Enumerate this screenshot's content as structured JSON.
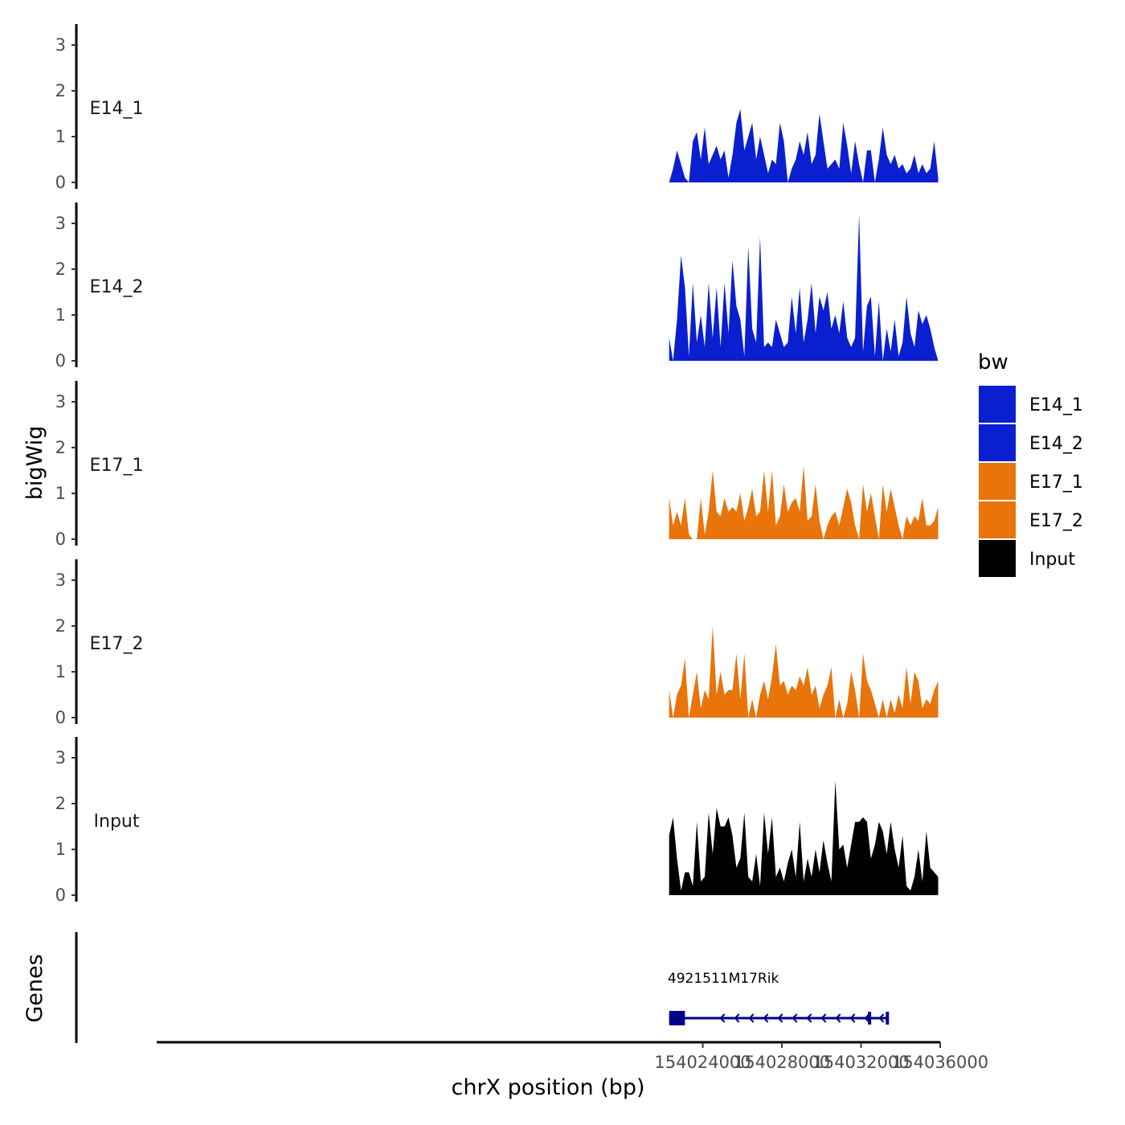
{
  "chart_data": {
    "type": "area",
    "title": "",
    "ylabel": "bigWig",
    "xlabel": "chrX position (bp)",
    "genes_label": "Genes",
    "xlim": [
      153996400,
      154036000
    ],
    "ylim": [
      0,
      3.4
    ],
    "y_ticks": [
      0,
      1,
      2,
      3
    ],
    "x_ticks": [
      154024000,
      154028000,
      154032000,
      154036000
    ],
    "x_tick_labels": [
      "154024000",
      "154028000",
      "154032000",
      "154036000"
    ],
    "legend": {
      "title": "bw",
      "position": "right",
      "entries": [
        {
          "name": "E14_1",
          "color": "#0A1FCF"
        },
        {
          "name": "E14_2",
          "color": "#0A1FCF"
        },
        {
          "name": "E17_1",
          "color": "#E8740A"
        },
        {
          "name": "E17_2",
          "color": "#E8740A"
        },
        {
          "name": "Input",
          "color": "#000000"
        }
      ]
    },
    "series": [
      {
        "name": "E14_1",
        "color": "#0A1FCF",
        "x": [
          154022300,
          154022500,
          154022700,
          154022900,
          154023100,
          154023300,
          154023500,
          154023700,
          154023900,
          154024100,
          154024300,
          154024500,
          154024700,
          154024900,
          154025100,
          154025300,
          154025500,
          154025700,
          154025900,
          154026100,
          154026300,
          154026500,
          154026700,
          154026900,
          154027100,
          154027300,
          154027500,
          154027700,
          154027900,
          154028100,
          154028300,
          154028500,
          154028700,
          154028900,
          154029100,
          154029300,
          154029500,
          154029700,
          154029900,
          154030100,
          154030300,
          154030500,
          154030700,
          154030900,
          154031100,
          154031300,
          154031500,
          154031700,
          154031900,
          154032100,
          154032300,
          154032500,
          154032700,
          154032900,
          154033100,
          154033300,
          154033500,
          154033700,
          154033900,
          154034100,
          154034300,
          154034500,
          154034700,
          154034900,
          154035100,
          154035300,
          154035500,
          154035700,
          154035900
        ],
        "values": [
          0.0,
          0.3,
          0.7,
          0.4,
          0.1,
          0.0,
          0.9,
          1.1,
          0.5,
          1.2,
          0.4,
          0.6,
          0.8,
          0.5,
          0.7,
          0.1,
          0.6,
          1.3,
          1.6,
          0.7,
          1.0,
          1.3,
          0.5,
          1.0,
          0.6,
          0.2,
          0.5,
          0.4,
          1.3,
          0.9,
          0.0,
          0.3,
          0.5,
          0.9,
          0.6,
          1.1,
          0.4,
          0.6,
          1.5,
          0.9,
          0.3,
          0.4,
          0.5,
          0.3,
          1.3,
          0.8,
          0.2,
          0.9,
          0.4,
          0.0,
          0.7,
          0.7,
          0.0,
          0.5,
          1.2,
          0.6,
          0.4,
          0.6,
          0.3,
          0.4,
          0.2,
          0.3,
          0.6,
          0.2,
          0.4,
          0.2,
          0.3,
          0.9,
          0.1
        ]
      },
      {
        "name": "E14_2",
        "color": "#0A1FCF",
        "x": [
          154022300,
          154022500,
          154022700,
          154022900,
          154023100,
          154023300,
          154023500,
          154023700,
          154023900,
          154024100,
          154024300,
          154024500,
          154024700,
          154024900,
          154025100,
          154025300,
          154025500,
          154025700,
          154025900,
          154026100,
          154026300,
          154026500,
          154026700,
          154026900,
          154027100,
          154027300,
          154027500,
          154027700,
          154027900,
          154028100,
          154028300,
          154028500,
          154028700,
          154028900,
          154029100,
          154029300,
          154029500,
          154029700,
          154029900,
          154030100,
          154030300,
          154030500,
          154030700,
          154030900,
          154031100,
          154031300,
          154031500,
          154031700,
          154031900,
          154032100,
          154032300,
          154032500,
          154032700,
          154032900,
          154033100,
          154033300,
          154033500,
          154033700,
          154033900,
          154034100,
          154034300,
          154034500,
          154034700,
          154034900,
          154035100,
          154035300,
          154035500,
          154035700,
          154035900
        ],
        "values": [
          0.5,
          0.0,
          0.9,
          2.3,
          1.6,
          0.1,
          1.7,
          0.4,
          1.0,
          0.3,
          1.7,
          0.5,
          1.6,
          0.3,
          1.7,
          0.6,
          2.2,
          1.2,
          0.9,
          0.1,
          2.5,
          0.7,
          0.4,
          2.7,
          0.3,
          0.4,
          0.3,
          0.9,
          0.6,
          0.3,
          0.4,
          1.4,
          0.6,
          1.6,
          0.4,
          0.9,
          1.7,
          0.6,
          1.4,
          1.1,
          1.5,
          0.7,
          1.0,
          0.6,
          1.3,
          0.5,
          0.3,
          0.5,
          3.2,
          0.2,
          1.2,
          1.4,
          0.1,
          1.3,
          0.0,
          0.7,
          0.2,
          0.9,
          0.1,
          0.4,
          1.4,
          0.6,
          0.3,
          1.1,
          0.8,
          1.0,
          0.7,
          0.3,
          0.0
        ]
      },
      {
        "name": "E17_1",
        "color": "#E8740A",
        "x": [
          154022300,
          154022500,
          154022700,
          154022900,
          154023100,
          154023300,
          154023500,
          154023700,
          154023900,
          154024100,
          154024300,
          154024500,
          154024700,
          154024900,
          154025100,
          154025300,
          154025500,
          154025700,
          154025900,
          154026100,
          154026300,
          154026500,
          154026700,
          154026900,
          154027100,
          154027300,
          154027500,
          154027700,
          154027900,
          154028100,
          154028300,
          154028500,
          154028700,
          154028900,
          154029100,
          154029300,
          154029500,
          154029700,
          154029900,
          154030100,
          154030300,
          154030500,
          154030700,
          154030900,
          154031100,
          154031300,
          154031500,
          154031700,
          154031900,
          154032100,
          154032300,
          154032500,
          154032700,
          154032900,
          154033100,
          154033300,
          154033500,
          154033700,
          154033900,
          154034100,
          154034300,
          154034500,
          154034700,
          154034900,
          154035100,
          154035300,
          154035500,
          154035700,
          154035900
        ],
        "values": [
          0.9,
          0.3,
          0.6,
          0.3,
          0.9,
          0.1,
          0.0,
          0.0,
          0.9,
          0.1,
          0.6,
          1.5,
          0.6,
          0.5,
          0.9,
          0.6,
          0.7,
          0.6,
          1.0,
          0.4,
          0.7,
          1.1,
          0.5,
          0.6,
          1.5,
          0.6,
          1.5,
          0.3,
          0.5,
          1.2,
          0.6,
          0.8,
          0.9,
          0.6,
          1.6,
          0.4,
          0.5,
          1.2,
          0.4,
          0.0,
          0.3,
          0.5,
          0.6,
          0.3,
          0.7,
          1.1,
          0.8,
          0.3,
          0.0,
          1.2,
          0.6,
          1.0,
          0.5,
          0.0,
          1.2,
          0.6,
          1.1,
          0.7,
          0.3,
          0.0,
          0.5,
          0.3,
          0.5,
          0.4,
          0.9,
          0.3,
          0.3,
          0.4,
          0.7
        ]
      },
      {
        "name": "E17_2",
        "color": "#E8740A",
        "x": [
          154022300,
          154022500,
          154022700,
          154022900,
          154023100,
          154023300,
          154023500,
          154023700,
          154023900,
          154024100,
          154024300,
          154024500,
          154024700,
          154024900,
          154025100,
          154025300,
          154025500,
          154025700,
          154025900,
          154026100,
          154026300,
          154026500,
          154026700,
          154026900,
          154027100,
          154027300,
          154027500,
          154027700,
          154027900,
          154028100,
          154028300,
          154028500,
          154028700,
          154028900,
          154029100,
          154029300,
          154029500,
          154029700,
          154029900,
          154030100,
          154030300,
          154030500,
          154030700,
          154030900,
          154031100,
          154031300,
          154031500,
          154031700,
          154031900,
          154032100,
          154032300,
          154032500,
          154032700,
          154032900,
          154033100,
          154033300,
          154033500,
          154033700,
          154033900,
          154034100,
          154034300,
          154034500,
          154034700,
          154034900,
          154035100,
          154035300,
          154035500,
          154035700,
          154035900
        ],
        "values": [
          0.6,
          0.0,
          0.5,
          0.7,
          1.3,
          0.0,
          0.5,
          1.0,
          0.2,
          0.6,
          0.4,
          2.0,
          0.5,
          1.0,
          0.5,
          0.6,
          0.6,
          1.4,
          0.4,
          1.4,
          0.0,
          0.4,
          0.0,
          0.5,
          0.8,
          0.4,
          0.9,
          1.6,
          0.7,
          0.8,
          0.5,
          0.7,
          0.6,
          0.9,
          0.7,
          1.1,
          0.5,
          0.7,
          0.2,
          0.5,
          0.7,
          1.1,
          0.0,
          0.4,
          0.0,
          0.3,
          1.0,
          0.6,
          0.0,
          1.4,
          0.8,
          0.6,
          0.3,
          0.0,
          0.4,
          0.0,
          0.4,
          0.1,
          0.5,
          0.2,
          1.1,
          0.3,
          1.0,
          0.8,
          0.2,
          0.4,
          0.3,
          0.6,
          0.8
        ]
      },
      {
        "name": "Input",
        "color": "#000000",
        "x": [
          154022300,
          154022500,
          154022700,
          154022900,
          154023100,
          154023300,
          154023500,
          154023700,
          154023900,
          154024100,
          154024300,
          154024500,
          154024700,
          154024900,
          154025100,
          154025300,
          154025500,
          154025700,
          154025900,
          154026100,
          154026300,
          154026500,
          154026700,
          154026900,
          154027100,
          154027300,
          154027500,
          154027700,
          154027900,
          154028100,
          154028300,
          154028500,
          154028700,
          154028900,
          154029100,
          154029300,
          154029500,
          154029700,
          154029900,
          154030100,
          154030300,
          154030500,
          154030700,
          154030900,
          154031100,
          154031300,
          154031500,
          154031700,
          154031900,
          154032100,
          154032300,
          154032500,
          154032700,
          154032900,
          154033100,
          154033300,
          154033500,
          154033700,
          154033900,
          154034100,
          154034300,
          154034500,
          154034700,
          154034900,
          154035100,
          154035300,
          154035500,
          154035700,
          154035900
        ],
        "values": [
          1.3,
          1.7,
          0.8,
          0.1,
          0.5,
          0.5,
          0.2,
          1.6,
          0.3,
          0.4,
          1.8,
          0.9,
          1.9,
          1.5,
          1.5,
          1.7,
          1.3,
          0.6,
          0.8,
          1.8,
          0.4,
          0.3,
          0.9,
          0.2,
          1.8,
          0.9,
          1.7,
          0.4,
          0.6,
          0.3,
          0.7,
          1.0,
          0.4,
          1.6,
          0.3,
          0.8,
          0.4,
          1.0,
          0.5,
          1.2,
          0.7,
          0.3,
          2.5,
          1.0,
          1.1,
          0.6,
          1.1,
          1.6,
          1.6,
          1.7,
          1.6,
          0.8,
          1.1,
          1.6,
          1.4,
          0.9,
          1.6,
          1.0,
          0.6,
          1.3,
          0.2,
          0.1,
          0.4,
          1.0,
          0.3,
          1.4,
          0.6,
          0.5,
          0.4
        ]
      }
    ],
    "genes": [
      {
        "name": "4921511M17Rik",
        "strand": "-",
        "start": 154022300,
        "end": 154033300,
        "exons": [
          [
            154022300,
            154023100
          ],
          [
            154032350,
            154032450
          ],
          [
            154033250,
            154033300
          ]
        ],
        "color": "#00008B"
      }
    ]
  }
}
